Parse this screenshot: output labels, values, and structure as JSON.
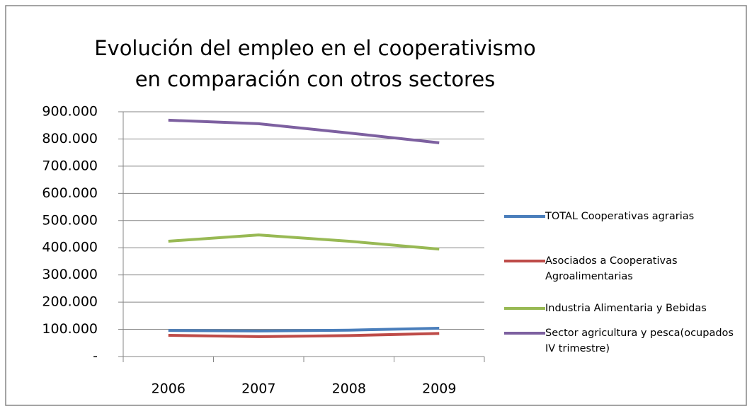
{
  "chart_data": {
    "type": "line",
    "title": "Evolución del empleo en el cooperativismo en comparación con otros sectores",
    "categories": [
      "2006",
      "2007",
      "2008",
      "2009"
    ],
    "series": [
      {
        "name": "TOTAL Cooperativas agrarias",
        "color": "#4a7ebb",
        "values": [
          96000,
          94000,
          97000,
          104000
        ]
      },
      {
        "name": "Asociados a Cooperativas Agroalimentarias",
        "color": "#be4b48",
        "values": [
          78000,
          73000,
          77000,
          85000
        ]
      },
      {
        "name": "Industria Alimentaria y Bebidas",
        "color": "#98b954",
        "values": [
          424000,
          447000,
          424000,
          395000
        ]
      },
      {
        "name": "Sector agricultura y pesca(ocupados IV trimestre)",
        "color": "#7d60a0",
        "values": [
          869000,
          856000,
          822000,
          786000
        ]
      }
    ],
    "ylim": [
      0,
      900000
    ],
    "yticks": [
      {
        "value": 0,
        "label": "-"
      },
      {
        "value": 100000,
        "label": "100.000"
      },
      {
        "value": 200000,
        "label": "200.000"
      },
      {
        "value": 300000,
        "label": "300.000"
      },
      {
        "value": 400000,
        "label": "400.000"
      },
      {
        "value": 500000,
        "label": "500.000"
      },
      {
        "value": 600000,
        "label": "600.000"
      },
      {
        "value": 700000,
        "label": "700.000"
      },
      {
        "value": 800000,
        "label": "800.000"
      },
      {
        "value": 900000,
        "label": "900.000"
      }
    ],
    "grid": true,
    "legend": "right"
  }
}
